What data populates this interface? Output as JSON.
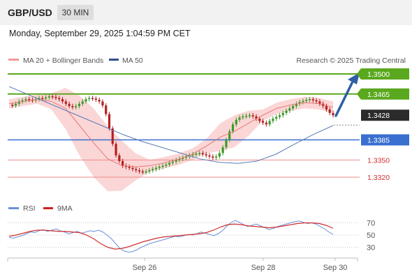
{
  "header": {
    "pair": "GBP/USD",
    "interval": "30 MIN"
  },
  "timestamp": "Monday, September 29, 2025 1:04:59 PM CET",
  "legend": {
    "ma20": "MA 20 + Bollinger Bands",
    "ma50": "MA 50",
    "rsi": "RSI",
    "ma9": "9MA"
  },
  "credit": "Research © 2025 Trading Central",
  "colors": {
    "up_candle": "#3a9a2a",
    "down_candle": "#b42020",
    "bollinger": "#f6a5a5",
    "ma20": "#e87878",
    "ma50": "#5a7ab8",
    "resistance": "#5aa81e",
    "pivot": "#3a6fd0",
    "support": "#e05050",
    "arrow": "#2f5fa5",
    "rsi": "#6a8fd8",
    "ma9": "#d03030"
  },
  "chart_data": [
    {
      "type": "candlestick",
      "y_range": [
        1.3312,
        1.3525
      ],
      "x_ticks": [
        "Sep 26",
        "Sep 28",
        "Sep 30"
      ],
      "levels": [
        {
          "label": "1.3500",
          "value": 1.35,
          "kind": "resistance"
        },
        {
          "label": "1.3465",
          "value": 1.3465,
          "kind": "resistance"
        },
        {
          "label": "1.3428",
          "value": 1.3428,
          "kind": "last"
        },
        {
          "label": "1.3385",
          "value": 1.3385,
          "kind": "pivot"
        },
        {
          "label": "1.3350",
          "value": 1.335,
          "kind": "support"
        },
        {
          "label": "1.3320",
          "value": 1.332,
          "kind": "support"
        }
      ],
      "close_series": [
        1.3446,
        1.3445,
        1.3448,
        1.3452,
        1.3454,
        1.3456,
        1.3455,
        1.3454,
        1.3456,
        1.3458,
        1.3457,
        1.3459,
        1.3461,
        1.346,
        1.3458,
        1.3456,
        1.3452,
        1.3448,
        1.3444,
        1.3442,
        1.3444,
        1.3448,
        1.3452,
        1.3456,
        1.3458,
        1.3457,
        1.3455,
        1.3452,
        1.3445,
        1.343,
        1.3405,
        1.3378,
        1.3358,
        1.3348,
        1.334,
        1.3338,
        1.3336,
        1.3334,
        1.3332,
        1.333,
        1.3329,
        1.333,
        1.3332,
        1.3334,
        1.3336,
        1.3338,
        1.334,
        1.3342,
        1.3345,
        1.3347,
        1.335,
        1.3352,
        1.3354,
        1.3356,
        1.3358,
        1.336,
        1.3361,
        1.3362,
        1.336,
        1.3358,
        1.3356,
        1.3354,
        1.3356,
        1.3362,
        1.3372,
        1.3385,
        1.34,
        1.3412,
        1.342,
        1.3424,
        1.3426,
        1.3427,
        1.3428,
        1.3426,
        1.3422,
        1.3418,
        1.3415,
        1.3412,
        1.3418,
        1.3422,
        1.3425,
        1.3428,
        1.3432,
        1.3436,
        1.344,
        1.3444,
        1.3448,
        1.3451,
        1.3453,
        1.3455,
        1.3456,
        1.3454,
        1.3452,
        1.3448,
        1.3444,
        1.3438,
        1.3432,
        1.3428
      ],
      "ma50_series": [
        1.3478,
        1.3464,
        1.345,
        1.3436,
        1.3422,
        1.3408,
        1.3394,
        1.3382,
        1.3372,
        1.3362,
        1.3352,
        1.3346,
        1.3344,
        1.3348,
        1.336,
        1.3378,
        1.3395,
        1.341
      ],
      "ma20_series": [
        1.3448,
        1.3452,
        1.3456,
        1.3452,
        1.344,
        1.341,
        1.338,
        1.3352,
        1.334,
        1.3338,
        1.334,
        1.3345,
        1.3351,
        1.336,
        1.3374,
        1.339,
        1.34,
        1.3414,
        1.3428,
        1.344,
        1.3446,
        1.345,
        1.3448,
        1.3442
      ]
    },
    {
      "type": "line",
      "y_ticks": [
        "70",
        "50",
        "30"
      ],
      "y_range": [
        20,
        80
      ],
      "rsi_series": [
        46,
        45,
        47,
        49,
        52,
        55,
        54,
        57,
        59,
        56,
        58,
        60,
        57,
        55,
        52,
        54,
        56,
        53,
        55,
        57,
        56,
        58,
        55,
        50,
        44,
        36,
        28,
        24,
        22,
        23,
        26,
        30,
        33,
        36,
        38,
        40,
        42,
        44,
        46,
        48,
        47,
        49,
        51,
        50,
        52,
        55,
        53,
        51,
        49,
        52,
        57,
        64,
        70,
        74,
        71,
        67,
        64,
        66,
        68,
        65,
        62,
        59,
        61,
        64,
        66,
        68,
        70,
        72,
        73,
        71,
        69,
        70,
        68,
        64,
        60,
        55,
        51
      ],
      "ma9_series": [
        48,
        50,
        53,
        56,
        58,
        58,
        57,
        56,
        56,
        55,
        54,
        50,
        44,
        36,
        30,
        27,
        28,
        31,
        35,
        39,
        42,
        45,
        47,
        48,
        49,
        50,
        51,
        52,
        54,
        58,
        63,
        67,
        68,
        67,
        65,
        64,
        63,
        62,
        63,
        65,
        67,
        69,
        70,
        70,
        69,
        66,
        61
      ]
    }
  ]
}
